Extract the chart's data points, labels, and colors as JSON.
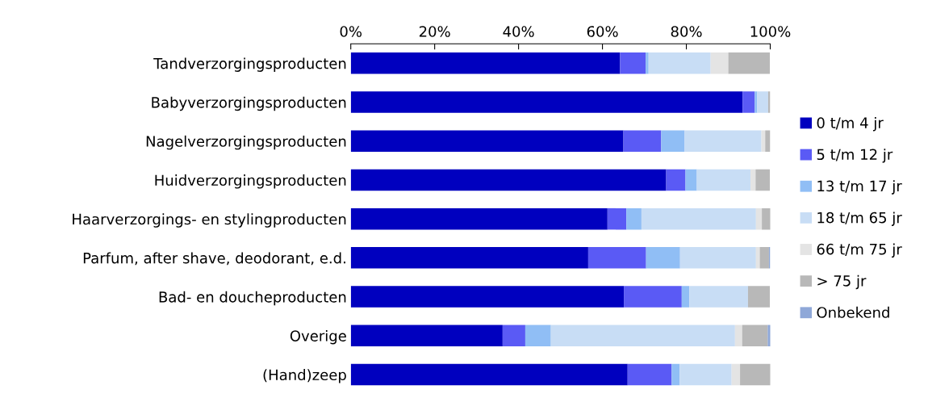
{
  "chart_data": {
    "type": "bar",
    "orientation": "horizontal",
    "stacked": true,
    "categories": [
      "Tandverzorgingsproducten",
      "Babyverzorgingsproducten",
      "Nagelverzorgingsproducten",
      "Huidverzorgingsproducten",
      "Haarverzorgings- en stylingproducten",
      "Parfum, after shave, deodorant, e.d.",
      "Bad- en doucheproducten",
      "Overige",
      "(Hand)zeep"
    ],
    "series": [
      {
        "name": "0 t/m 4 jr",
        "color": "#0000bf",
        "values": [
          64.2,
          93.4,
          65.0,
          75.2,
          61.2,
          56.6,
          65.1,
          36.2,
          66.0
        ]
      },
      {
        "name": "5 t/m 12 jr",
        "color": "#5a5af5",
        "values": [
          6.1,
          2.9,
          9.0,
          4.6,
          4.5,
          13.8,
          13.8,
          5.4,
          10.5
        ]
      },
      {
        "name": "13 t/m 17 jr",
        "color": "#90bef5",
        "values": [
          0.7,
          0.6,
          5.6,
          2.7,
          3.6,
          8.1,
          1.8,
          6.1,
          1.9
        ]
      },
      {
        "name": "18 t/m 65 jr",
        "color": "#c8ddf5",
        "values": [
          14.8,
          2.6,
          18.3,
          12.8,
          27.3,
          18.1,
          14.0,
          43.9,
          12.4
        ]
      },
      {
        "name": "66 t/m 75 jr",
        "color": "#e4e4e4",
        "values": [
          4.2,
          0,
          0.9,
          1.2,
          1.4,
          0.9,
          0,
          1.7,
          2.0
        ]
      },
      {
        "name": "> 75 jr",
        "color": "#b8b8b8",
        "values": [
          9.9,
          0.5,
          1.2,
          3.4,
          2.1,
          2.2,
          5.2,
          6.1,
          7.3
        ]
      },
      {
        "name": "Onbekend",
        "color": "#8fa8d8",
        "values": [
          0,
          0,
          0,
          0,
          0,
          0.3,
          0,
          0.7,
          0
        ]
      }
    ],
    "xlim": [
      0,
      100
    ],
    "xticks": [
      {
        "value": 0,
        "label": "0%"
      },
      {
        "value": 20,
        "label": "20%"
      },
      {
        "value": 40,
        "label": "40%"
      },
      {
        "value": 60,
        "label": "60%"
      },
      {
        "value": 80,
        "label": "80%"
      },
      {
        "value": 100,
        "label": "100%"
      }
    ],
    "grid": false,
    "legend": "right"
  }
}
